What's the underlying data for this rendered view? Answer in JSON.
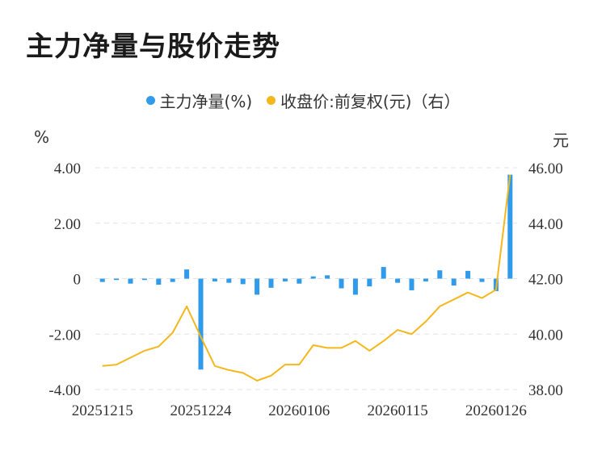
{
  "title": "主力净量与股价走势",
  "legend": [
    {
      "label": "主力净量(%)",
      "color": "#2f9bea"
    },
    {
      "label": "收盘价:前复权(元)（右）",
      "color": "#f4b71c"
    }
  ],
  "chart_data": {
    "type": "bar",
    "title": "主力净量与股价走势",
    "y_unit_left": "%",
    "y_unit_right": "元",
    "ylim_left": [
      -4,
      4
    ],
    "ylim_right": [
      38,
      46
    ],
    "yticks_left": [
      "4.00",
      "2.00",
      "0",
      "-2.00",
      "-4.00"
    ],
    "yticks_right": [
      "46.00",
      "44.00",
      "42.00",
      "40.00",
      "38.00"
    ],
    "x_tick_labels": [
      "20251215",
      "20251224",
      "20260106",
      "20260115",
      "20260126"
    ],
    "x_tick_indices": [
      0,
      7,
      14,
      21,
      28
    ],
    "series": [
      {
        "name": "主力净量(%)",
        "type": "bar",
        "axis": "left",
        "values": [
          -0.12,
          -0.05,
          -0.18,
          -0.05,
          -0.22,
          -0.12,
          0.33,
          -3.28,
          -0.1,
          -0.15,
          -0.2,
          -0.58,
          -0.33,
          -0.1,
          -0.18,
          0.08,
          0.12,
          -0.35,
          -0.58,
          -0.28,
          0.42,
          -0.15,
          -0.42,
          -0.1,
          0.3,
          -0.25,
          0.28,
          -0.12,
          -0.45,
          3.75
        ]
      },
      {
        "name": "收盘价:前复权(元)（右）",
        "type": "line",
        "axis": "right",
        "values": [
          38.85,
          38.9,
          39.15,
          39.4,
          39.55,
          40.05,
          41.0,
          39.9,
          38.85,
          38.7,
          38.6,
          38.32,
          38.5,
          38.9,
          38.9,
          39.6,
          39.5,
          39.5,
          39.75,
          39.4,
          39.75,
          40.15,
          40.0,
          40.45,
          41.0,
          41.25,
          41.5,
          41.3,
          41.6,
          45.75
        ]
      }
    ],
    "grid": true,
    "legend_position": "top-center"
  }
}
